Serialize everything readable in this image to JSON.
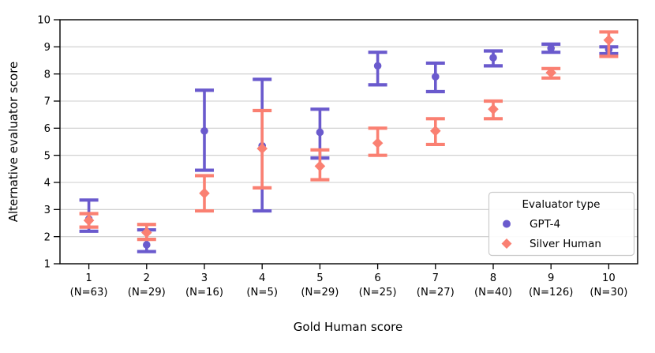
{
  "figure": {
    "background": "#ffffff"
  },
  "chart_data": {
    "type": "errorbar-scatter",
    "title": "",
    "xlabel": "Gold Human score",
    "ylabel": "Alternative evaluator score",
    "ylim": [
      1,
      10
    ],
    "yticks": [
      1,
      2,
      3,
      4,
      5,
      6,
      7,
      8,
      9,
      10
    ],
    "grid": "horizontal",
    "grid_color": "#cccccc",
    "spine_color": "#000000",
    "categories": [
      {
        "score": "1",
        "n_label": "(N=63)"
      },
      {
        "score": "2",
        "n_label": "(N=29)"
      },
      {
        "score": "3",
        "n_label": "(N=16)"
      },
      {
        "score": "4",
        "n_label": "(N=5)"
      },
      {
        "score": "5",
        "n_label": "(N=29)"
      },
      {
        "score": "6",
        "n_label": "(N=25)"
      },
      {
        "score": "7",
        "n_label": "(N=27)"
      },
      {
        "score": "8",
        "n_label": "(N=40)"
      },
      {
        "score": "9",
        "n_label": "(N=126)"
      },
      {
        "score": "10",
        "n_label": "(N=30)"
      }
    ],
    "legend": {
      "title": "Evaluator type",
      "position": "lower right"
    },
    "series": [
      {
        "name": "GPT-4",
        "marker": "circle",
        "color": "#6a5acd",
        "means": [
          2.65,
          1.7,
          5.9,
          5.35,
          5.85,
          8.3,
          7.9,
          8.6,
          8.95,
          8.9
        ],
        "ci_low": [
          2.2,
          1.45,
          4.45,
          2.95,
          4.9,
          7.6,
          7.35,
          8.3,
          8.8,
          8.75
        ],
        "ci_high": [
          3.35,
          2.25,
          7.4,
          7.8,
          6.7,
          8.8,
          8.4,
          8.85,
          9.1,
          9.0
        ]
      },
      {
        "name": "Silver Human",
        "marker": "diamond",
        "color": "#fa8072",
        "means": [
          2.6,
          2.15,
          3.6,
          5.25,
          4.6,
          5.45,
          5.9,
          6.7,
          8.05,
          9.25
        ],
        "ci_low": [
          2.35,
          1.9,
          2.95,
          3.8,
          4.1,
          5.0,
          5.4,
          6.35,
          7.85,
          8.65
        ],
        "ci_high": [
          2.85,
          2.45,
          4.25,
          6.65,
          5.2,
          6.0,
          6.35,
          7.0,
          8.2,
          9.55
        ]
      }
    ]
  }
}
